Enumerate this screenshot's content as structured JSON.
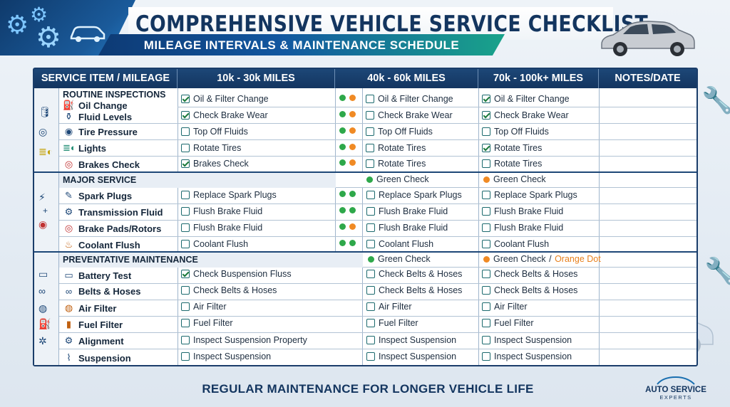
{
  "header": {
    "title": "COMPREHENSIVE VEHICLE SERVICE CHECKLIST",
    "subtitle": "MILEAGE INTERVALS & MAINTENANCE SCHEDULE"
  },
  "colors": {
    "navy": "#133560",
    "teal": "#19a38a",
    "green_dot": "#2ea84a",
    "orange_dot": "#f08a24"
  },
  "columns": [
    "SERVICE ITEM / MILEAGE",
    "10k - 30k MILES",
    "40k - 60k MILES",
    "70k - 100k+ MILES",
    "NOTES/DATE"
  ],
  "sections": {
    "routine": {
      "title": "ROUTINE INSPECTIONS",
      "side_icons": [
        "oil-can-icon",
        "tire-icon",
        "headlight-icon"
      ],
      "items": [
        {
          "label": "Oil Change",
          "icon": "oil-can-icon"
        },
        {
          "label": "Fluid Levels",
          "icon": "fluid-bottle-icon"
        },
        {
          "label": "Tire Pressure",
          "icon": "tire-icon"
        },
        {
          "label": "Lights",
          "icon": "headlight-icon"
        },
        {
          "label": "Brakes Check",
          "icon": "brake-icon"
        }
      ],
      "rows": [
        {
          "c1": "Oil & Filter Change",
          "c1_checked": true,
          "dots": [
            "green",
            "orange"
          ],
          "c2": "Oil & Filter Change",
          "c2_checked": false,
          "c3": "Oil & Filter Change",
          "c3_checked": true
        },
        {
          "c1": "Check Brake Wear",
          "c1_checked": true,
          "dots": [
            "green",
            "orange"
          ],
          "c2": "Check Brake Wear",
          "c2_checked": false,
          "c3": "Check Brake Wear",
          "c3_checked": true
        },
        {
          "c1": "Top Off Fluids",
          "c1_checked": false,
          "dots": [
            "green",
            "orange"
          ],
          "c2": "Top Off Fluids",
          "c2_checked": false,
          "c3": "Top Off Fluids",
          "c3_checked": false
        },
        {
          "c1": "Rotate Tires",
          "c1_checked": false,
          "dots": [
            "green",
            "orange"
          ],
          "c2": "Rotate Tires",
          "c2_checked": false,
          "c3": "Rotate Tires",
          "c3_checked": true
        },
        {
          "c1": "Brakes Check",
          "c1_checked": true,
          "dots": [
            "green",
            "orange"
          ],
          "c2": "Rotate Tires",
          "c2_checked": false,
          "c3": "Rotate Tires",
          "c3_checked": false
        }
      ]
    },
    "major": {
      "title": "MAJOR SERVICE",
      "legend_c2": "Green Check",
      "legend_c3": "Green Check",
      "items": [
        {
          "label": "Spark Plugs",
          "icon": "spark-plug-icon"
        },
        {
          "label": "Transmission Fluid",
          "icon": "transmission-gear-icon"
        },
        {
          "label": "Brake Pads/Rotors",
          "icon": "brake-rotor-icon"
        },
        {
          "label": "Coolant Flush",
          "icon": "coolant-icon"
        }
      ],
      "rows": [
        {
          "c1": "Replace Spark Plugs",
          "c2": "Replace Spark Plugs",
          "c3": "Replace Spark Plugs",
          "dots": [
            "green",
            "green"
          ]
        },
        {
          "c1": "Flush Brake Fluid",
          "c2": "Flush Brake Fluid",
          "c3": "Flush Brake Fluid",
          "dots": [
            "green",
            "green"
          ]
        },
        {
          "c1": "Flush Brake Fluid",
          "c2": "Flush Brake Fluid",
          "c3": "Flush Brake Fluid",
          "dots": [
            "green",
            "orange"
          ]
        },
        {
          "c1": "Coolant Flush",
          "c2": "Coolant Flush",
          "c3": "Coolant Flush",
          "dots": [
            "green",
            "green"
          ]
        }
      ]
    },
    "preventative": {
      "title": "PREVENTATIVE MAINTENANCE",
      "legend_c2": "Green Check",
      "legend_c3_a": "Green Check",
      "legend_c3_sep": " / ",
      "legend_c3_b": "Orange Dot",
      "items": [
        {
          "label": "Battery Test",
          "icon": "battery-icon"
        },
        {
          "label": "Belts & Hoses",
          "icon": "belt-icon"
        },
        {
          "label": "Air Filter",
          "icon": "air-filter-icon"
        },
        {
          "label": "Fuel Filter",
          "icon": "fuel-filter-icon"
        },
        {
          "label": "Alignment",
          "icon": "alignment-icon"
        },
        {
          "label": "Suspension",
          "icon": "suspension-icon"
        }
      ],
      "rows": [
        {
          "c1": "Check Buspension Fluss",
          "c1_checked": true,
          "c2": "Check Belts & Hoses",
          "c3": "Check Belts & Hoses"
        },
        {
          "c1": "Check Belts & Hoses",
          "c1_checked": false,
          "c2": "Check Belts & Hoses",
          "c3": "Check Belts & Hoses"
        },
        {
          "c1": "Air Filter",
          "c1_checked": false,
          "c2": "Air Filter",
          "c3": "Air Filter"
        },
        {
          "c1": "Fuel Filter",
          "c1_checked": false,
          "c2": "Fuel Filter",
          "c3": "Fuel Filter"
        },
        {
          "c1": "Inspect Suspension Property",
          "c1_checked": false,
          "c2": "Inspect Suspension",
          "c3": "Inspect Suspension"
        },
        {
          "c1": "Inspect Suspension",
          "c1_checked": false,
          "c2": "Inspect Suspension",
          "c3": "Inspect Suspension"
        }
      ]
    }
  },
  "footer": {
    "text": "REGULAR MAINTENANCE FOR LONGER VEHICLE LIFE",
    "brand_name": "AUTO SERVICE",
    "brand_sub": "EXPERTS"
  }
}
